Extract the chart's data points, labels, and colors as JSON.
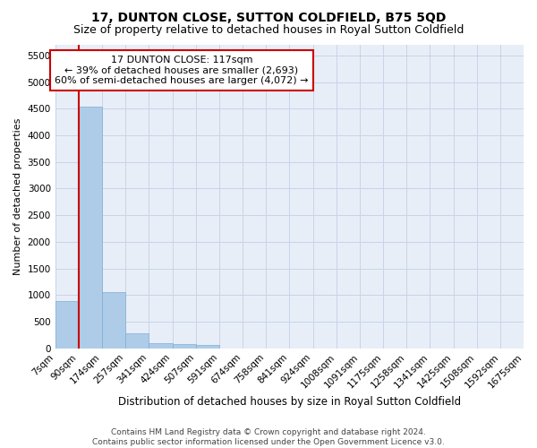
{
  "title": "17, DUNTON CLOSE, SUTTON COLDFIELD, B75 5QD",
  "subtitle": "Size of property relative to detached houses in Royal Sutton Coldfield",
  "xlabel": "Distribution of detached houses by size in Royal Sutton Coldfield",
  "ylabel": "Number of detached properties",
  "footer_line1": "Contains HM Land Registry data © Crown copyright and database right 2024.",
  "footer_line2": "Contains public sector information licensed under the Open Government Licence v3.0.",
  "bin_labels": [
    "7sqm",
    "90sqm",
    "174sqm",
    "257sqm",
    "341sqm",
    "424sqm",
    "507sqm",
    "591sqm",
    "674sqm",
    "758sqm",
    "841sqm",
    "924sqm",
    "1008sqm",
    "1091sqm",
    "1175sqm",
    "1258sqm",
    "1341sqm",
    "1425sqm",
    "1508sqm",
    "1592sqm",
    "1675sqm"
  ],
  "bar_values": [
    880,
    4540,
    1050,
    280,
    95,
    80,
    55,
    0,
    0,
    0,
    0,
    0,
    0,
    0,
    0,
    0,
    0,
    0,
    0,
    0
  ],
  "bar_color": "#aecce8",
  "bar_edge_color": "#7bafd4",
  "vline_color": "#cc0000",
  "annotation_text": "17 DUNTON CLOSE: 117sqm\n← 39% of detached houses are smaller (2,693)\n60% of semi-detached houses are larger (4,072) →",
  "annotation_box_color": "#ffffff",
  "annotation_box_edge_color": "#cc0000",
  "ylim": [
    0,
    5700
  ],
  "yticks": [
    0,
    500,
    1000,
    1500,
    2000,
    2500,
    3000,
    3500,
    4000,
    4500,
    5000,
    5500
  ],
  "background_color": "#e8eef7",
  "grid_color": "#c8d4e8",
  "title_fontsize": 10,
  "subtitle_fontsize": 9,
  "tick_fontsize": 7.5,
  "ylabel_fontsize": 8,
  "xlabel_fontsize": 8.5
}
